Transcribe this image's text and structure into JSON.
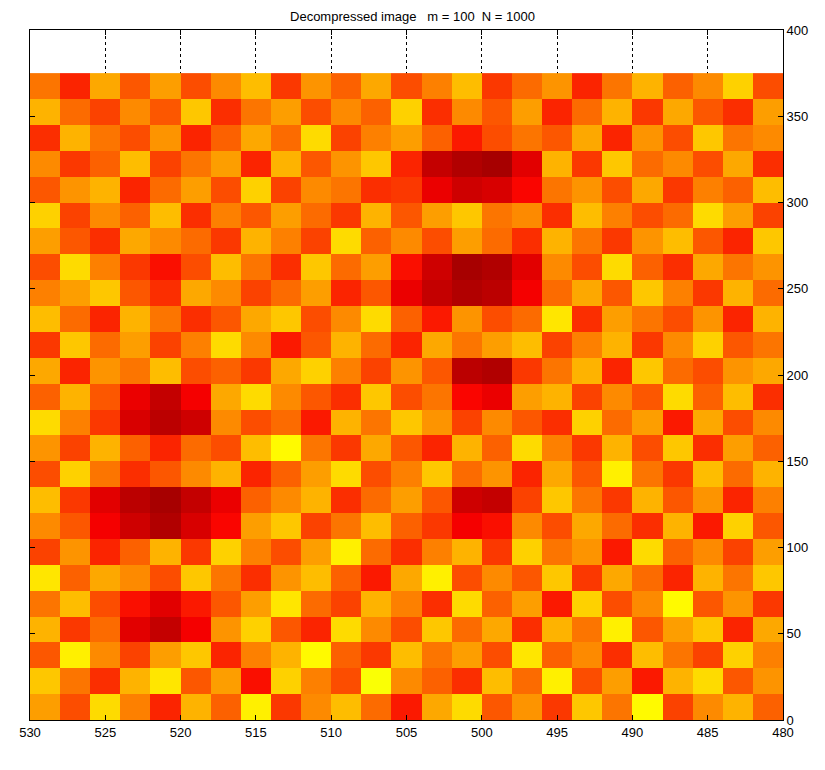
{
  "chart_data": {
    "type": "heatmap",
    "title": "Decompressed image   m = 100  N = 1000",
    "x": [
      529,
      527,
      525,
      523,
      521,
      519,
      517,
      515,
      513,
      511,
      509,
      507,
      505,
      503,
      501,
      499,
      497,
      495,
      493,
      491,
      489,
      487,
      485,
      483,
      481
    ],
    "y": [
      7.5,
      22.5,
      37.5,
      52.5,
      67.5,
      82.5,
      97.5,
      112.5,
      127.5,
      142.5,
      157.5,
      172.5,
      187.5,
      202.5,
      217.5,
      232.5,
      247.5,
      262.5,
      277.5,
      292.5,
      307.5,
      322.5,
      337.5,
      352.5,
      367.5
    ],
    "cells": [
      [
        72,
        80,
        66,
        75,
        84,
        70,
        78,
        64,
        82,
        74,
        69,
        77,
        85,
        71,
        66,
        79,
        73,
        82,
        68,
        76,
        63,
        81,
        74,
        70,
        78
      ],
      [
        68,
        76,
        83,
        70,
        65,
        79,
        72,
        86,
        67,
        75,
        80,
        62,
        74,
        78,
        83,
        69,
        77,
        64,
        80,
        72,
        85,
        70,
        66,
        79,
        73
      ],
      [
        79,
        64,
        74,
        81,
        72,
        68,
        84,
        75,
        70,
        63,
        78,
        82,
        69,
        76,
        72,
        80,
        65,
        78,
        74,
        83,
        69,
        76,
        81,
        67,
        75
      ],
      [
        70,
        82,
        77,
        90,
        93,
        88,
        73,
        67,
        79,
        84,
        66,
        74,
        80,
        68,
        77,
        71,
        83,
        70,
        76,
        64,
        79,
        72,
        68,
        84,
        71
      ],
      [
        76,
        69,
        80,
        86,
        90,
        85,
        79,
        72,
        65,
        77,
        81,
        70,
        75,
        83,
        66,
        78,
        72,
        85,
        67,
        80,
        74,
        63,
        79,
        73,
        82
      ],
      [
        65,
        78,
        71,
        74,
        80,
        68,
        76,
        83,
        73,
        69,
        78,
        85,
        71,
        64,
        80,
        74,
        79,
        68,
        82,
        71,
        77,
        84,
        70,
        76,
        68
      ],
      [
        81,
        73,
        84,
        78,
        70,
        82,
        67,
        75,
        80,
        72,
        64,
        77,
        83,
        75,
        70,
        82,
        67,
        76,
        73,
        85,
        66,
        78,
        74,
        81,
        72
      ],
      [
        74,
        79,
        88,
        92,
        95,
        91,
        87,
        72,
        68,
        81,
        76,
        69,
        78,
        82,
        88,
        86,
        74,
        80,
        71,
        77,
        83,
        70,
        85,
        67,
        79
      ],
      [
        69,
        82,
        90,
        94,
        96,
        93,
        89,
        78,
        74,
        70,
        83,
        77,
        72,
        79,
        92,
        93,
        81,
        68,
        76,
        82,
        70,
        79,
        73,
        84,
        75
      ],
      [
        80,
        67,
        76,
        83,
        79,
        74,
        70,
        84,
        78,
        72,
        66,
        80,
        75,
        68,
        77,
        73,
        84,
        71,
        79,
        64,
        76,
        82,
        69,
        77,
        70
      ],
      [
        73,
        81,
        70,
        78,
        84,
        77,
        80,
        69,
        63,
        76,
        82,
        71,
        79,
        84,
        70,
        78,
        66,
        75,
        82,
        70,
        80,
        68,
        83,
        72,
        78
      ],
      [
        66,
        75,
        82,
        91,
        94,
        92,
        74,
        80,
        77,
        85,
        70,
        76,
        68,
        73,
        81,
        74,
        79,
        83,
        67,
        77,
        72,
        85,
        71,
        80,
        74
      ],
      [
        78,
        70,
        79,
        89,
        93,
        88,
        71,
        66,
        74,
        79,
        83,
        68,
        80,
        76,
        87,
        89,
        72,
        70,
        81,
        74,
        79,
        66,
        78,
        69,
        83
      ],
      [
        71,
        84,
        73,
        76,
        69,
        80,
        78,
        82,
        71,
        67,
        75,
        81,
        73,
        79,
        94,
        95,
        82,
        76,
        70,
        84,
        68,
        77,
        80,
        73,
        71
      ],
      [
        82,
        68,
        77,
        72,
        81,
        75,
        66,
        74,
        85,
        79,
        70,
        77,
        84,
        71,
        76,
        72,
        69,
        81,
        75,
        70,
        82,
        74,
        67,
        79,
        76
      ],
      [
        69,
        77,
        84,
        70,
        76,
        83,
        79,
        71,
        68,
        80,
        74,
        66,
        78,
        85,
        73,
        80,
        77,
        65,
        83,
        72,
        76,
        80,
        73,
        84,
        70
      ],
      [
        75,
        72,
        68,
        79,
        83,
        71,
        74,
        81,
        77,
        72,
        84,
        79,
        89,
        93,
        95,
        94,
        88,
        77,
        71,
        79,
        68,
        75,
        82,
        70,
        77
      ],
      [
        80,
        66,
        75,
        82,
        86,
        80,
        69,
        76,
        83,
        68,
        77,
        72,
        86,
        92,
        96,
        95,
        90,
        74,
        80,
        66,
        78,
        83,
        71,
        76,
        73
      ],
      [
        72,
        79,
        83,
        71,
        74,
        77,
        82,
        70,
        75,
        81,
        66,
        78,
        74,
        80,
        72,
        77,
        83,
        70,
        76,
        82,
        73,
        69,
        79,
        84,
        68
      ],
      [
        67,
        81,
        74,
        78,
        69,
        83,
        75,
        79,
        72,
        77,
        82,
        70,
        79,
        72,
        68,
        76,
        74,
        83,
        69,
        75,
        80,
        77,
        66,
        72,
        81
      ],
      [
        79,
        73,
        70,
        84,
        77,
        72,
        80,
        67,
        81,
        74,
        76,
        83,
        82,
        89,
        92,
        91,
        87,
        76,
        73,
        80,
        71,
        82,
        75,
        78,
        69
      ],
      [
        74,
        82,
        78,
        69,
        81,
        76,
        72,
        84,
        70,
        79,
        73,
        68,
        84,
        93,
        95,
        96,
        90,
        70,
        82,
        68,
        77,
        74,
        80,
        71,
        83
      ],
      [
        83,
        70,
        76,
        80,
        73,
        84,
        78,
        71,
        77,
        66,
        81,
        75,
        72,
        78,
        85,
        80,
        76,
        79,
        71,
        84,
        73,
        80,
        68,
        76,
        74
      ],
      [
        70,
        77,
        81,
        74,
        79,
        68,
        83,
        76,
        72,
        80,
        74,
        78,
        67,
        83,
        74,
        79,
        72,
        84,
        77,
        70,
        82,
        71,
        79,
        83,
        72
      ],
      [
        76,
        84,
        71,
        79,
        72,
        80,
        74,
        69,
        82,
        73,
        78,
        71,
        80,
        75,
        69,
        82,
        77,
        73,
        84,
        76,
        70,
        78,
        74,
        67,
        80
      ]
    ],
    "zlim": [
      0,
      100
    ],
    "xlim": [
      530,
      480
    ],
    "xticks": [
      530,
      525,
      520,
      515,
      510,
      505,
      500,
      495,
      490,
      485,
      480
    ],
    "ylim": [
      0,
      400
    ],
    "yticks": [
      0,
      50,
      100,
      150,
      200,
      250,
      300,
      350,
      400
    ],
    "grid": true
  }
}
